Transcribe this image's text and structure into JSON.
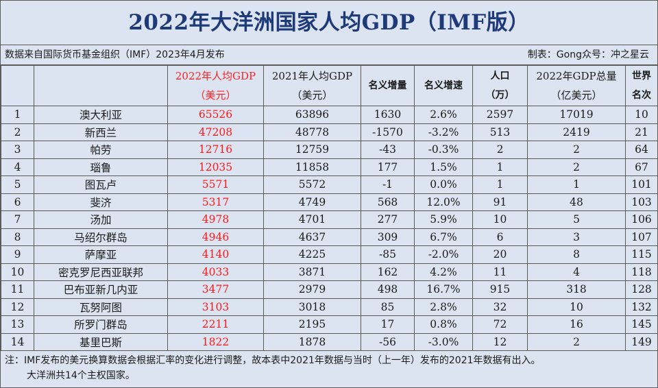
{
  "title": "2022年大洋洲国家人均GDP（IMF版）",
  "meta": {
    "source": "数据来自国际货币基金组织（IMF）2023年4月发布",
    "credit": "制表：Gong众号：冲之星云"
  },
  "headers": [
    {
      "l1": "",
      "l2": ""
    },
    {
      "l1": "",
      "l2": ""
    },
    {
      "l1": "2022年人均GDP",
      "l2": "（美元）"
    },
    {
      "l1": "2021年人均GDP",
      "l2": "（美元）"
    },
    {
      "l1": "名义增量",
      "l2": ""
    },
    {
      "l1": "名义增速",
      "l2": ""
    },
    {
      "l1": "人口",
      "l2": "（万）"
    },
    {
      "l1": "2022年GDP总量",
      "l2": "（亿美元）"
    },
    {
      "l1": "世界",
      "l2": "名次"
    }
  ],
  "rows": [
    [
      "1",
      "澳大利亚",
      "65526",
      "63896",
      "1630",
      "2.6%",
      "2597",
      "17019",
      "10"
    ],
    [
      "2",
      "新西兰",
      "47208",
      "48778",
      "-1570",
      "-3.2%",
      "513",
      "2419",
      "21"
    ],
    [
      "3",
      "帕劳",
      "12716",
      "12759",
      "-43",
      "-0.3%",
      "2",
      "2",
      "64"
    ],
    [
      "4",
      "瑙鲁",
      "12035",
      "11858",
      "177",
      "1.5%",
      "1",
      "2",
      "67"
    ],
    [
      "5",
      "图瓦卢",
      "5571",
      "5572",
      "-1",
      "0.0%",
      "1",
      "1",
      "101"
    ],
    [
      "6",
      "斐济",
      "5317",
      "4749",
      "568",
      "12.0%",
      "91",
      "48",
      "103"
    ],
    [
      "7",
      "汤加",
      "4978",
      "4701",
      "277",
      "5.9%",
      "10",
      "5",
      "106"
    ],
    [
      "8",
      "马绍尔群岛",
      "4946",
      "4637",
      "309",
      "6.7%",
      "6",
      "3",
      "107"
    ],
    [
      "9",
      "萨摩亚",
      "4140",
      "4225",
      "-85",
      "-2.0%",
      "20",
      "8",
      "115"
    ],
    [
      "10",
      "密克罗尼西亚联邦",
      "4033",
      "3871",
      "162",
      "4.2%",
      "11",
      "4",
      "118"
    ],
    [
      "11",
      "巴布亚新几内亚",
      "3477",
      "2979",
      "498",
      "16.7%",
      "915",
      "318",
      "128"
    ],
    [
      "12",
      "瓦努阿图",
      "3103",
      "3018",
      "85",
      "2.8%",
      "32",
      "10",
      "132"
    ],
    [
      "13",
      "所罗门群岛",
      "2211",
      "2195",
      "17",
      "0.8%",
      "72",
      "16",
      "145"
    ],
    [
      "14",
      "基里巴斯",
      "1822",
      "1878",
      "-56",
      "-3.0%",
      "12",
      "2",
      "149"
    ]
  ],
  "notes": {
    "line1": "注：IMF发布的美元换算数据会根据汇率的变化进行调整，故本表中2021年数据与当时（上一年）发布的2021年数据有出入。",
    "line2": "大洋洲共14个主权国家。"
  },
  "colors": {
    "title": "#1f3a78",
    "highlight": "#ff1a1a",
    "background": "#dbe4f0",
    "grid": "#5a5a5a"
  }
}
